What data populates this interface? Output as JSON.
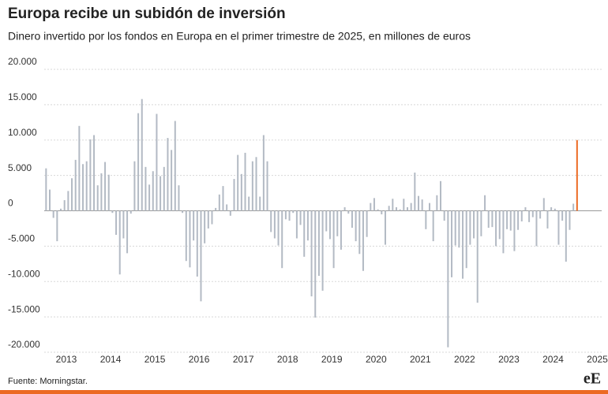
{
  "chart_data": {
    "type": "bar",
    "title": "Europa recibe un subidón de inversión",
    "subtitle": "Dinero invertido por los fondos en Europa en el primer trimestre de 2025, en millones de euros",
    "source": "Fuente: Morningstar.",
    "logo": "eE",
    "x_labels": [
      "2013",
      "2014",
      "2015",
      "2016",
      "2017",
      "2018",
      "2019",
      "2020",
      "2021",
      "2022",
      "2023",
      "2024",
      "2025"
    ],
    "values": [
      6000,
      3000,
      -1000,
      -4300,
      300,
      1500,
      2800,
      4600,
      7200,
      12000,
      6600,
      7000,
      10100,
      10700,
      3600,
      5300,
      6900,
      5100,
      -300,
      -3400,
      -9000,
      -3900,
      -6000,
      -400,
      7000,
      13800,
      15800,
      6200,
      3700,
      5600,
      13700,
      4900,
      6200,
      10300,
      8600,
      12700,
      3600,
      -300,
      -7100,
      -8000,
      -4200,
      -9300,
      -12800,
      -4600,
      -2500,
      -1900,
      400,
      2300,
      3500,
      900,
      -700,
      4500,
      7900,
      5200,
      8200,
      2000,
      7000,
      7600,
      2000,
      10700,
      7000,
      -3000,
      -3900,
      -4900,
      -8100,
      -1200,
      -1400,
      -300,
      -3900,
      -2000,
      -6500,
      -4200,
      -12100,
      -15100,
      -9200,
      -11300,
      -2900,
      -4000,
      -8100,
      -3600,
      -5500,
      500,
      -400,
      -2400,
      -4300,
      -6100,
      -8500,
      -3700,
      1100,
      1800,
      200,
      -500,
      -4800,
      700,
      1700,
      500,
      200,
      1700,
      500,
      1100,
      5400,
      2100,
      1600,
      -2600,
      1100,
      -4300,
      2200,
      4200,
      -1400,
      -19300,
      -9400,
      -4900,
      -5200,
      -9600,
      -8100,
      -4800,
      -3900,
      -13000,
      -3600,
      2200,
      -2400,
      -2300,
      -5000,
      -4000,
      -6000,
      -2600,
      -2800,
      -5700,
      -2700,
      -1500,
      500,
      -1600,
      -900,
      -5000,
      -1100,
      1800,
      -2500,
      500,
      300,
      -4800,
      -1400,
      -7200,
      -2700,
      1000,
      10000
    ],
    "color": "#b3bac4",
    "highlight_color": "#ec6a23",
    "ylim": [
      -20000,
      20000
    ],
    "yticks": [
      {
        "value": -20000,
        "label": "-20.000"
      },
      {
        "value": -15000,
        "label": "-15.000"
      },
      {
        "value": -10000,
        "label": "-10.000"
      },
      {
        "value": -5000,
        "label": "-5.000"
      },
      0,
      {
        "value": 5000,
        "label": "5.000"
      },
      {
        "value": 10000,
        "label": "10.000"
      },
      {
        "value": 15000,
        "label": "15.000"
      },
      {
        "value": 20000,
        "label": "20.000"
      }
    ],
    "grid": true
  }
}
